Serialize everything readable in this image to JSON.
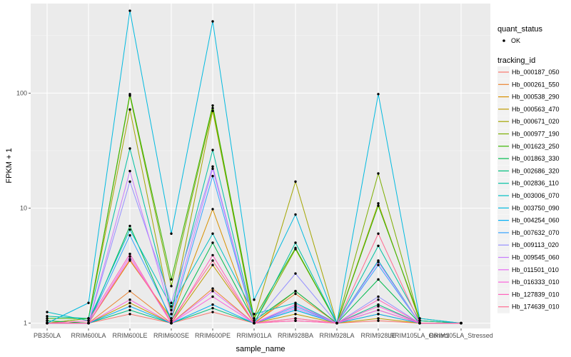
{
  "chart_data": {
    "type": "line",
    "xlabel": "sample_name",
    "ylabel": "FPKM + 1",
    "y_scale": "log10",
    "ylim": [
      0.9,
      600
    ],
    "y_ticks": [
      {
        "value": 1,
        "label": "1"
      },
      {
        "value": 10,
        "label": "10"
      },
      {
        "value": 100,
        "label": "100"
      }
    ],
    "categories": [
      "PB350LA",
      "RRIM600LA",
      "RRIM600LE",
      "RRIM600SE",
      "RRIM600PE",
      "RRIM901LA",
      "RRIM928BA",
      "RRIM928LA",
      "RRIM928LE",
      "RRIM105LA_Control",
      "RRIM105LA_Stressed"
    ],
    "grid": true,
    "legend_position": "right",
    "point_legend": {
      "title": "quant_status",
      "entries": [
        "OK"
      ]
    },
    "legend_title": "tracking_id",
    "series": [
      {
        "name": "Hb_000187_050",
        "color": "#F8766D",
        "values": [
          1.0,
          1.0,
          1.2,
          1.0,
          1.25,
          1.0,
          1.05,
          1.0,
          1.05,
          1.0,
          1.0
        ]
      },
      {
        "name": "Hb_000261_550",
        "color": "#EA8331",
        "values": [
          1.0,
          1.0,
          1.9,
          1.0,
          2.0,
          1.0,
          1.8,
          1.0,
          1.2,
          1.0,
          1.0
        ]
      },
      {
        "name": "Hb_000538_290",
        "color": "#D89000",
        "values": [
          1.0,
          1.0,
          3.5,
          1.1,
          9.8,
          1.0,
          1.9,
          1.0,
          1.3,
          1.0,
          1.0
        ]
      },
      {
        "name": "Hb_000563_470",
        "color": "#C09B00",
        "values": [
          1.05,
          1.0,
          1.5,
          1.0,
          3.2,
          1.0,
          1.2,
          1.0,
          1.1,
          1.0,
          1.0
        ]
      },
      {
        "name": "Hb_000671_020",
        "color": "#A3A500",
        "values": [
          1.0,
          1.1,
          72,
          1.2,
          70,
          1.1,
          17,
          1.0,
          11,
          1.05,
          1.0
        ]
      },
      {
        "name": "Hb_000977_190",
        "color": "#7CAE00",
        "values": [
          1.0,
          1.1,
          95,
          2.1,
          74,
          1.0,
          4.4,
          1.0,
          20,
          1.05,
          1.0
        ]
      },
      {
        "name": "Hb_001623_250",
        "color": "#39B600",
        "values": [
          1.1,
          1.1,
          98,
          2.4,
          78,
          1.1,
          4.5,
          1.0,
          10.5,
          1.1,
          1.0
        ]
      },
      {
        "name": "Hb_001863_330",
        "color": "#00BB4E",
        "values": [
          1.05,
          1.0,
          7,
          1.05,
          5,
          1.05,
          1.9,
          1.0,
          2.4,
          1.0,
          1.0
        ]
      },
      {
        "name": "Hb_002686_320",
        "color": "#00BF7D",
        "values": [
          1.0,
          1.0,
          1.3,
          1.0,
          1.35,
          1.0,
          1.3,
          1.0,
          1.45,
          1.0,
          1.0
        ]
      },
      {
        "name": "Hb_002836_110",
        "color": "#00C1A3",
        "values": [
          1.15,
          1.1,
          33,
          1.3,
          32,
          1.0,
          5.0,
          1.0,
          4.7,
          1.05,
          1.0
        ]
      },
      {
        "name": "Hb_003006_070",
        "color": "#00BFC4",
        "values": [
          1.25,
          1.05,
          6.5,
          1.4,
          6,
          1.2,
          1.5,
          1.0,
          3.5,
          1.0,
          1.0
        ]
      },
      {
        "name": "Hb_003750_090",
        "color": "#00BAE0",
        "values": [
          1.0,
          1.5,
          520,
          6,
          420,
          1.6,
          8.8,
          1.0,
          98,
          1.1,
          1.0
        ]
      },
      {
        "name": "Hb_004254_060",
        "color": "#00B0F6",
        "values": [
          1.0,
          1.0,
          1.4,
          1.0,
          1.45,
          1.0,
          1.3,
          1.0,
          1.2,
          1.0,
          1.0
        ]
      },
      {
        "name": "Hb_007632_070",
        "color": "#35A2FF",
        "values": [
          1.0,
          1.0,
          5.8,
          1.1,
          19,
          1.0,
          1.4,
          1.0,
          3.2,
          1.0,
          1.0
        ]
      },
      {
        "name": "Hb_009113_020",
        "color": "#9590FF",
        "values": [
          1.0,
          1.0,
          17,
          1.5,
          23,
          1.0,
          2.7,
          1.0,
          1.7,
          1.0,
          1.0
        ]
      },
      {
        "name": "Hb_009545_060",
        "color": "#C77CFF",
        "values": [
          1.0,
          1.0,
          21,
          1.2,
          22,
          1.0,
          1.35,
          1.0,
          3.4,
          1.0,
          1.0
        ]
      },
      {
        "name": "Hb_011501_010",
        "color": "#E76BF3",
        "values": [
          1.0,
          1.0,
          3.8,
          1.0,
          1.9,
          1.0,
          1.1,
          1.0,
          1.3,
          1.0,
          1.0
        ]
      },
      {
        "name": "Hb_016333_010",
        "color": "#FA62DB",
        "values": [
          1.0,
          1.0,
          1.6,
          1.0,
          1.7,
          1.0,
          1.45,
          1.0,
          1.4,
          1.0,
          1.0
        ]
      },
      {
        "name": "Hb_127839_010",
        "color": "#FF62BC",
        "values": [
          1.0,
          1.05,
          4.0,
          1.0,
          3.9,
          1.0,
          1.05,
          1.0,
          1.6,
          1.0,
          1.0
        ]
      },
      {
        "name": "Hb_174639_010",
        "color": "#FF6C91",
        "values": [
          1.0,
          1.0,
          3.6,
          1.05,
          3.5,
          1.0,
          1.1,
          1.0,
          6,
          1.0,
          1.0
        ]
      }
    ]
  }
}
